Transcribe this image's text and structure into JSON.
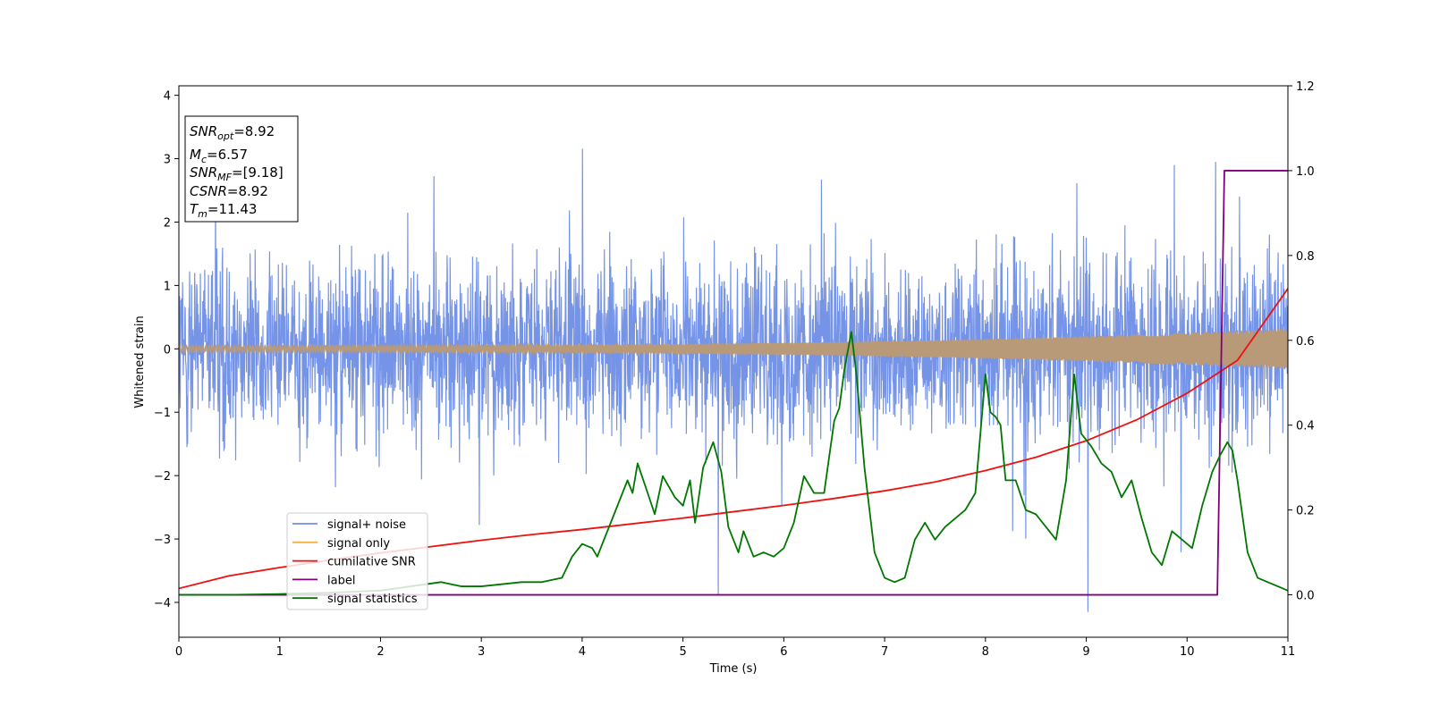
{
  "chart_data": {
    "type": "line",
    "xlabel": "Time (s)",
    "ylabel": "Whitened strain",
    "xlim": [
      0,
      11
    ],
    "ylim_left": [
      -4.55,
      4.15
    ],
    "ylim_right": [
      -0.1,
      1.2
    ],
    "xticks": [
      "0",
      "1",
      "2",
      "3",
      "4",
      "5",
      "6",
      "7",
      "8",
      "9",
      "10",
      "11"
    ],
    "yticks_left": [
      "−4",
      "−3",
      "−2",
      "−1",
      "0",
      "1",
      "2",
      "3",
      "4"
    ],
    "yticks_right": [
      "0.0",
      "0.2",
      "0.4",
      "0.6",
      "0.8",
      "1.0",
      "1.2"
    ],
    "info_box": [
      {
        "base": "SNR",
        "sub": "opt",
        "rest": "=8.92"
      },
      {
        "base": "M",
        "sub": "c",
        "rest": "=6.57"
      },
      {
        "base": "SNR",
        "sub": "MF",
        "rest": "=[9.18]"
      },
      {
        "base": "CSNR",
        "sub": "",
        "rest": "=8.92"
      },
      {
        "base": "T",
        "sub": "m",
        "rest": "=11.43"
      }
    ],
    "legend_position": "lower-left",
    "colors": {
      "signal_noise": "#6f8ee6",
      "signal_only": "#f5b04a",
      "signal_overlap": "#b99a78",
      "cumulative_snr": "#ee1111",
      "label": "#7f007f",
      "signal_statistics": "#007700"
    },
    "series": [
      {
        "name": "signal+ noise",
        "axis": "left",
        "kind": "noise",
        "note_free": true,
        "envelope_typical": [
          -1.7,
          1.7
        ],
        "extremes": [
          -4.15,
          3.65
        ]
      },
      {
        "name": "signal only",
        "axis": "left",
        "kind": "chirp",
        "amplitude_start": 0.05,
        "amplitude_end": 0.32
      },
      {
        "name": "cumilative SNR",
        "axis": "left",
        "x": [
          0,
          0.5,
          1,
          1.5,
          2,
          2.5,
          3,
          3.5,
          4,
          4.5,
          5,
          5.5,
          6,
          6.5,
          7,
          7.5,
          8,
          8.5,
          9,
          9.5,
          10,
          10.5,
          11
        ],
        "y": [
          -3.78,
          -3.58,
          -3.45,
          -3.33,
          -3.22,
          -3.12,
          -3.02,
          -2.93,
          -2.85,
          -2.76,
          -2.67,
          -2.57,
          -2.47,
          -2.36,
          -2.24,
          -2.1,
          -1.92,
          -1.71,
          -1.45,
          -1.12,
          -0.7,
          -0.18,
          0.95
        ]
      },
      {
        "name": "label",
        "axis": "right",
        "x": [
          0,
          10.3,
          10.37,
          11
        ],
        "y": [
          0.0,
          0.0,
          1.0,
          1.0
        ]
      },
      {
        "name": "signal statistics",
        "axis": "right",
        "x": [
          0,
          0.5,
          1,
          1.5,
          2,
          2.3,
          2.6,
          2.8,
          3,
          3.4,
          3.6,
          3.8,
          3.9,
          4.0,
          4.1,
          4.15,
          4.3,
          4.45,
          4.5,
          4.55,
          4.65,
          4.72,
          4.8,
          4.92,
          5.0,
          5.07,
          5.12,
          5.2,
          5.3,
          5.38,
          5.45,
          5.55,
          5.6,
          5.7,
          5.8,
          5.9,
          6.0,
          6.1,
          6.2,
          6.3,
          6.4,
          6.5,
          6.55,
          6.6,
          6.67,
          6.72,
          6.8,
          6.9,
          7.0,
          7.1,
          7.2,
          7.3,
          7.4,
          7.5,
          7.6,
          7.7,
          7.8,
          7.9,
          8.0,
          8.05,
          8.1,
          8.15,
          8.2,
          8.3,
          8.4,
          8.5,
          8.6,
          8.7,
          8.8,
          8.88,
          8.95,
          9.05,
          9.15,
          9.25,
          9.35,
          9.45,
          9.55,
          9.65,
          9.75,
          9.85,
          9.95,
          10.05,
          10.15,
          10.25,
          10.33,
          10.4,
          10.45,
          10.5,
          10.6,
          10.7,
          10.8,
          10.9,
          11.0
        ],
        "y": [
          0.0,
          0.0,
          0.002,
          0.005,
          0.01,
          0.02,
          0.03,
          0.02,
          0.02,
          0.03,
          0.03,
          0.04,
          0.09,
          0.12,
          0.11,
          0.09,
          0.18,
          0.27,
          0.24,
          0.31,
          0.24,
          0.19,
          0.28,
          0.23,
          0.21,
          0.27,
          0.17,
          0.3,
          0.36,
          0.29,
          0.16,
          0.1,
          0.15,
          0.09,
          0.1,
          0.09,
          0.11,
          0.17,
          0.28,
          0.24,
          0.24,
          0.41,
          0.44,
          0.53,
          0.62,
          0.52,
          0.3,
          0.1,
          0.04,
          0.03,
          0.04,
          0.13,
          0.17,
          0.13,
          0.16,
          0.18,
          0.2,
          0.24,
          0.52,
          0.43,
          0.42,
          0.4,
          0.27,
          0.27,
          0.2,
          0.19,
          0.16,
          0.13,
          0.27,
          0.52,
          0.38,
          0.35,
          0.31,
          0.29,
          0.23,
          0.27,
          0.18,
          0.1,
          0.07,
          0.15,
          0.13,
          0.11,
          0.21,
          0.29,
          0.33,
          0.36,
          0.34,
          0.27,
          0.1,
          0.04,
          0.03,
          0.02,
          0.01
        ]
      }
    ]
  }
}
